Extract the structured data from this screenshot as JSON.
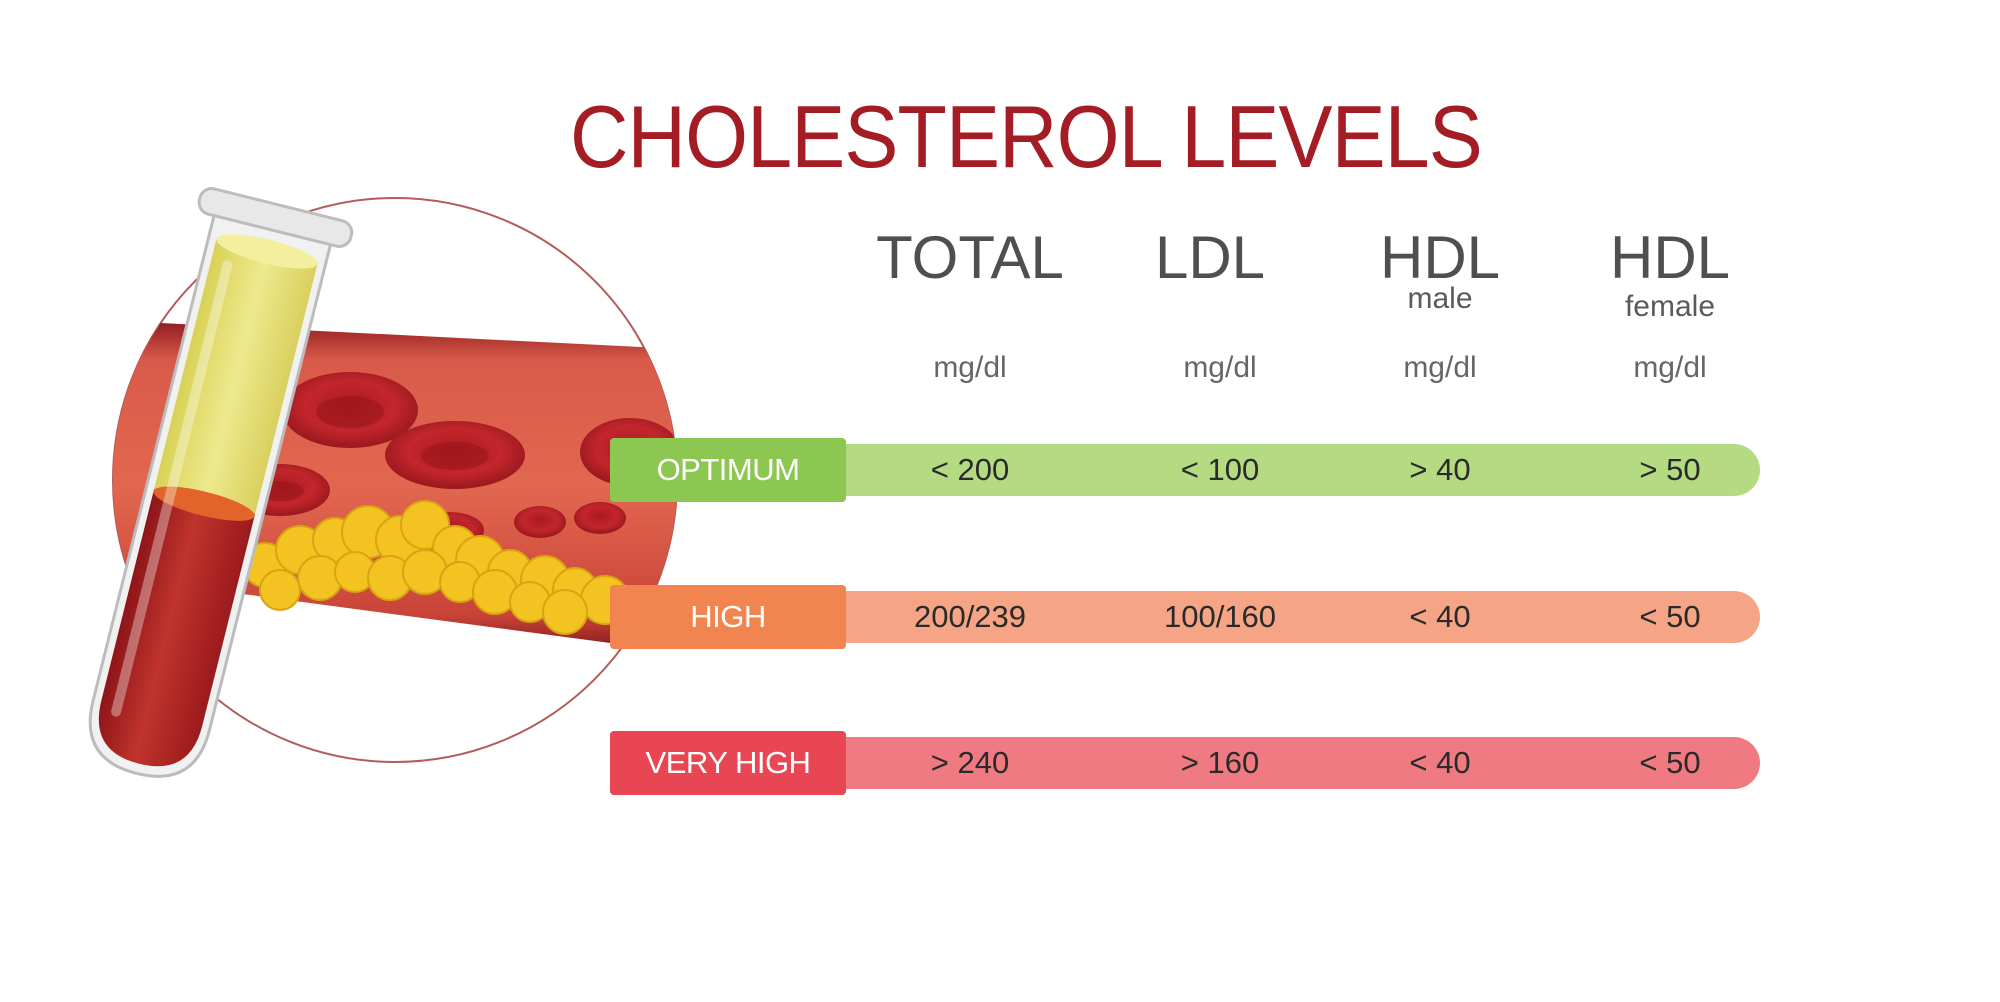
{
  "title": "CHOLESTEROL LEVELS",
  "columns": [
    {
      "name": "TOTAL",
      "sub": "",
      "unit": "mg/dl"
    },
    {
      "name": "LDL",
      "sub": "",
      "unit": "mg/dl"
    },
    {
      "name": "HDL",
      "sub": "male",
      "unit": "mg/dl"
    },
    {
      "name": "HDL",
      "sub": "female",
      "unit": "mg/dl"
    }
  ],
  "rows": [
    {
      "label": "OPTIMUM",
      "label_color": "#8cc751",
      "track_color": "#b4da82",
      "values": [
        "< 200",
        "< 100",
        ">  40",
        ">  50"
      ]
    },
    {
      "label": "HIGH",
      "label_color": "#f2844f",
      "track_color": "#f5a585",
      "values": [
        "200/239",
        "100/160",
        "< 40",
        "< 50"
      ]
    },
    {
      "label": "VERY HIGH",
      "label_color": "#e94654",
      "track_color": "#f07a82",
      "values": [
        "> 240",
        ">  160",
        "< 40",
        "< 50"
      ]
    }
  ],
  "colors": {
    "title": "#a51d24",
    "blood": "#b72026",
    "plasma": "#e9e27a",
    "fat": "#f3c321"
  }
}
